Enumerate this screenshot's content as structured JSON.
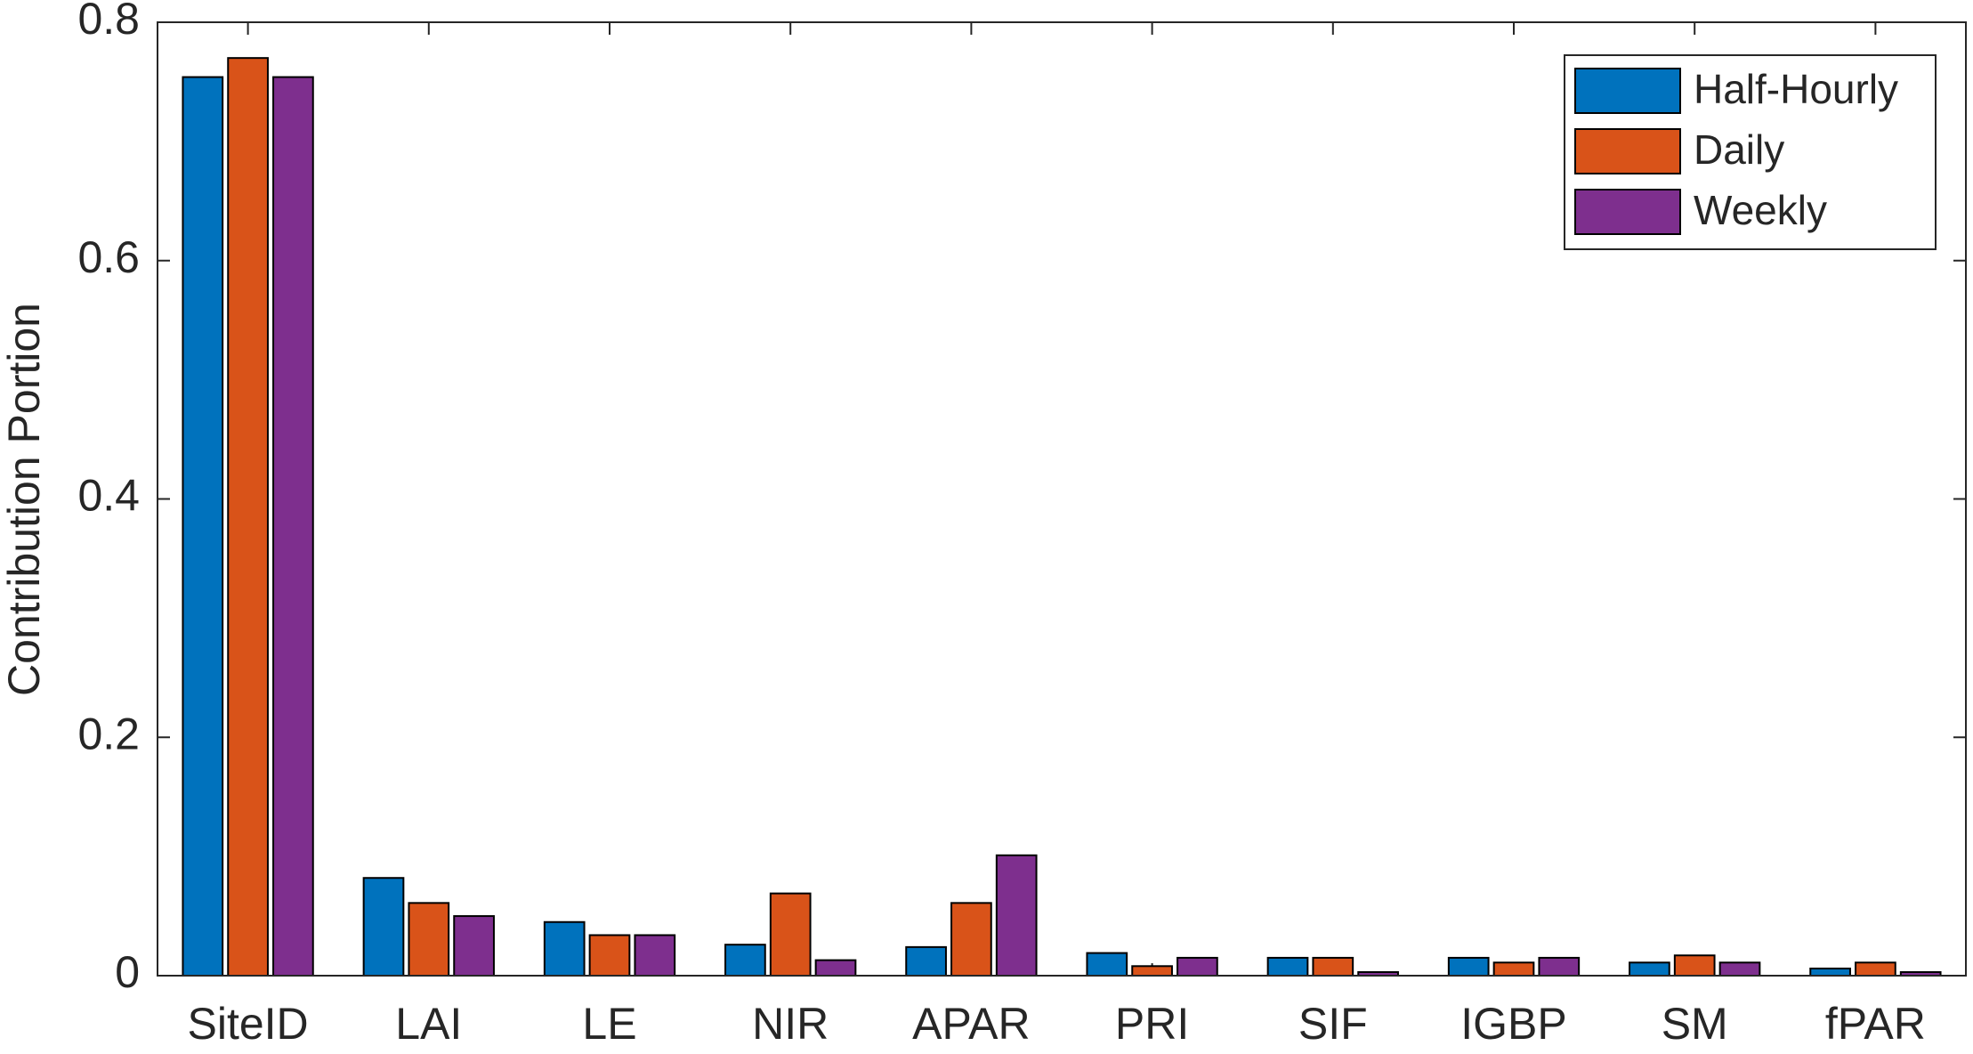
{
  "chart_data": {
    "type": "bar",
    "y_label": "Contribution Portion",
    "categories": [
      "SiteID",
      "LAI",
      "LE",
      "NIR",
      "APAR",
      "PRI",
      "SIF",
      "IGBP",
      "SM",
      "fPAR"
    ],
    "series": [
      {
        "name": "Half-Hourly",
        "color": "#0072bd",
        "values": [
          0.754,
          0.082,
          0.045,
          0.026,
          0.024,
          0.019,
          0.015,
          0.015,
          0.011,
          0.006
        ]
      },
      {
        "name": "Daily",
        "color": "#d95319",
        "values": [
          0.77,
          0.061,
          0.034,
          0.069,
          0.061,
          0.008,
          0.015,
          0.011,
          0.017,
          0.011
        ]
      },
      {
        "name": "Weekly",
        "color": "#7e2f8e",
        "values": [
          0.754,
          0.05,
          0.034,
          0.013,
          0.101,
          0.015,
          0.003,
          0.015,
          0.011,
          0.003
        ]
      }
    ],
    "ylim": [
      0,
      0.8
    ],
    "yticks": [
      0,
      0.2,
      0.4,
      0.6,
      0.8
    ],
    "legend": "upper-right"
  }
}
